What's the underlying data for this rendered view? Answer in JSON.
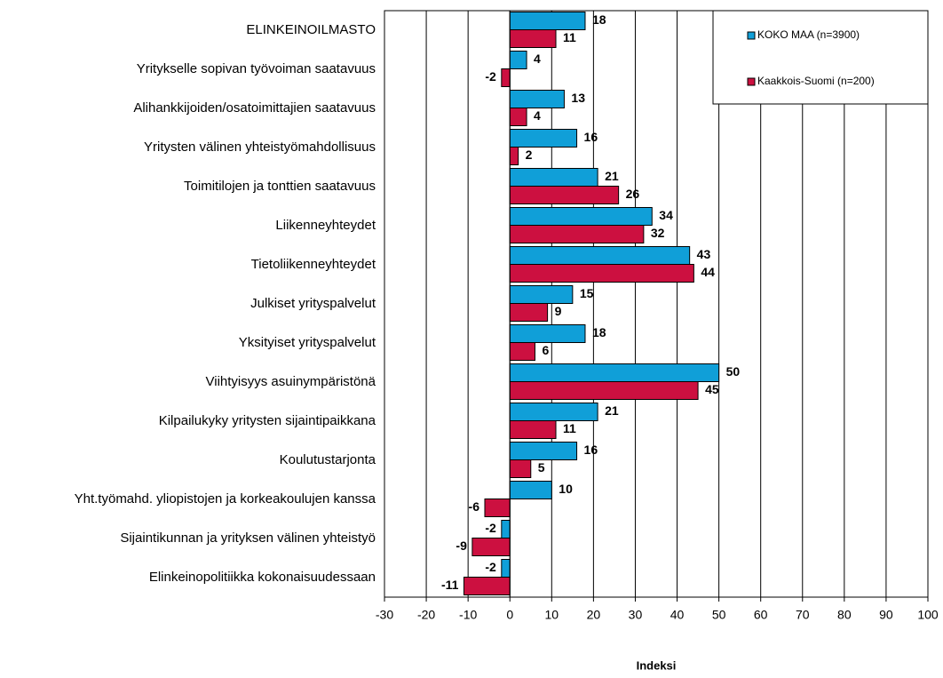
{
  "chart_data": {
    "type": "hbar",
    "xlabel": "Indeksi",
    "categories": [
      "ELINKEINOILMASTO",
      "Yritykselle sopivan työvoiman saatavuus",
      "Alihankkijoiden/osatoimittajien saatavuus",
      "Yritysten välinen yhteistyömahdollisuus",
      "Toimitilojen ja tonttien saatavuus",
      "Liikenneyhteydet",
      "Tietoliikenneyhteydet",
      "Julkiset yrityspalvelut",
      "Yksityiset yrityspalvelut",
      "Viihtyisyys asuinympäristönä",
      "Kilpailukyky yritysten sijaintipaikkana",
      "Koulutustarjonta",
      "Yht.työmahd. yliopistojen ja korkeakoulujen kanssa",
      "Sijaintikunnan ja yrityksen välinen yhteistyö",
      "Elinkeinopolitiikka kokonaisuudessaan"
    ],
    "series": [
      {
        "name": "KOKO MAA (n=3900)",
        "color": "#109fd8",
        "values": [
          18,
          4,
          13,
          16,
          21,
          34,
          43,
          15,
          18,
          50,
          21,
          16,
          10,
          -2,
          -2
        ]
      },
      {
        "name": "Kaakkois-Suomi (n=200)",
        "color": "#cc1040",
        "values": [
          11,
          -2,
          4,
          2,
          26,
          32,
          44,
          9,
          6,
          45,
          11,
          5,
          -6,
          -9,
          -11
        ]
      }
    ],
    "xlim": [
      -30,
      100
    ],
    "xticks": [
      -30,
      -20,
      -10,
      0,
      10,
      20,
      30,
      40,
      50,
      60,
      70,
      80,
      90,
      100
    ],
    "grid": true,
    "legend": "top-right"
  }
}
